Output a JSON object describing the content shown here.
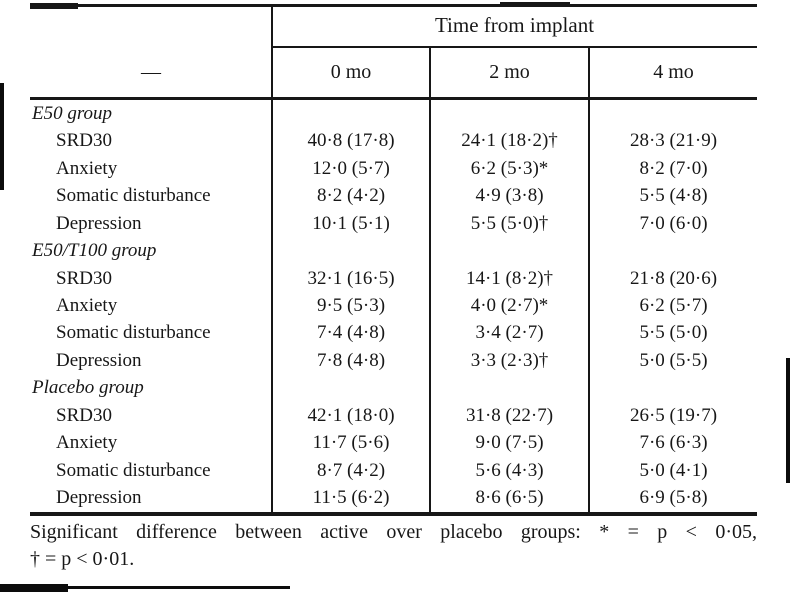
{
  "table": {
    "corner_label": "—",
    "span_header": "Time from implant",
    "columns": [
      "0 mo",
      "2 mo",
      "4 mo"
    ],
    "groups": [
      {
        "label": "E50 group",
        "rows": [
          {
            "label": "SRD30",
            "values": [
              "40·8 (17·8)",
              "24·1 (18·2)†",
              "28·3 (21·9)"
            ]
          },
          {
            "label": "Anxiety",
            "values": [
              "12·0 (5·7)",
              "6·2 (5·3)*",
              "8·2 (7·0)"
            ]
          },
          {
            "label": "Somatic disturbance",
            "values": [
              "8·2 (4·2)",
              "4·9 (3·8)",
              "5·5 (4·8)"
            ]
          },
          {
            "label": "Depression",
            "values": [
              "10·1 (5·1)",
              "5·5 (5·0)†",
              "7·0 (6·0)"
            ]
          }
        ]
      },
      {
        "label": "E50/T100 group",
        "rows": [
          {
            "label": "SRD30",
            "values": [
              "32·1 (16·5)",
              "14·1 (8·2)†",
              "21·8 (20·6)"
            ]
          },
          {
            "label": "Anxiety",
            "values": [
              "9·5 (5·3)",
              "4·0 (2·7)*",
              "6·2 (5·7)"
            ]
          },
          {
            "label": "Somatic disturbance",
            "values": [
              "7·4 (4·8)",
              "3·4 (2·7)",
              "5·5 (5·0)"
            ]
          },
          {
            "label": "Depression",
            "values": [
              "7·8 (4·8)",
              "3·3 (2·3)†",
              "5·0 (5·5)"
            ]
          }
        ]
      },
      {
        "label": "Placebo group",
        "rows": [
          {
            "label": "SRD30",
            "values": [
              "42·1 (18·0)",
              "31·8 (22·7)",
              "26·5 (19·7)"
            ]
          },
          {
            "label": "Anxiety",
            "values": [
              "11·7 (5·6)",
              "9·0 (7·5)",
              "7·6 (6·3)"
            ]
          },
          {
            "label": "Somatic disturbance",
            "values": [
              "8·7 (4·2)",
              "5·6 (4·3)",
              "5·0 (4·1)"
            ]
          },
          {
            "label": "Depression",
            "values": [
              "11·5 (6·2)",
              "8·6 (6·5)",
              "6·9 (5·8)"
            ]
          }
        ]
      }
    ],
    "footnote_line1": "Significant difference between active over placebo groups: * = p < 0·05,",
    "footnote_line2": "† = p < 0·01."
  }
}
